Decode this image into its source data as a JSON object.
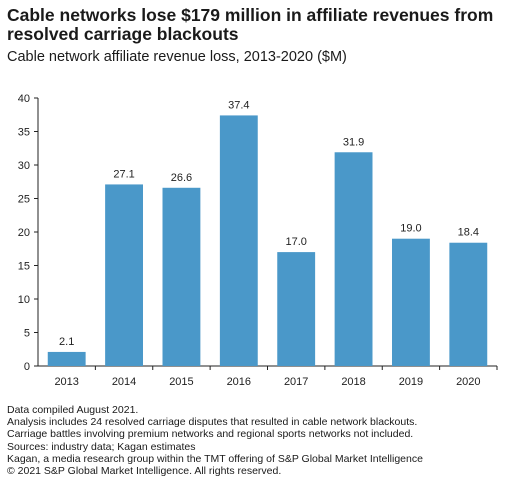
{
  "title": "Cable networks lose $179 million in affiliate revenues from resolved carriage blackouts",
  "subtitle": "Cable network affiliate revenue loss, 2013-2020 ($M)",
  "chart_data": {
    "type": "bar",
    "categories": [
      "2013",
      "2014",
      "2015",
      "2016",
      "2017",
      "2018",
      "2019",
      "2020"
    ],
    "values": [
      2.1,
      27.1,
      26.6,
      37.4,
      17.0,
      31.9,
      19.0,
      18.4
    ],
    "data_labels": [
      "2.1",
      "27.1",
      "26.6",
      "37.4",
      "17.0",
      "31.9",
      "19.0",
      "18.4"
    ],
    "ylim": [
      0,
      40
    ],
    "yticks": [
      0,
      5,
      10,
      15,
      20,
      25,
      30,
      35,
      40
    ],
    "grid": false,
    "bar_color": "#4a98c9"
  },
  "notes": [
    "Data compiled August 2021.",
    "Analysis includes 24 resolved carriage disputes that resulted in cable network blackouts.",
    "Carriage battles involving premium networks and regional sports networks not included.",
    "Sources: industry data; Kagan estimates",
    "Kagan, a media research group within the TMT offering of S&P Global Market Intelligence",
    "© 2021 S&P Global Market Intelligence. All rights reserved."
  ]
}
